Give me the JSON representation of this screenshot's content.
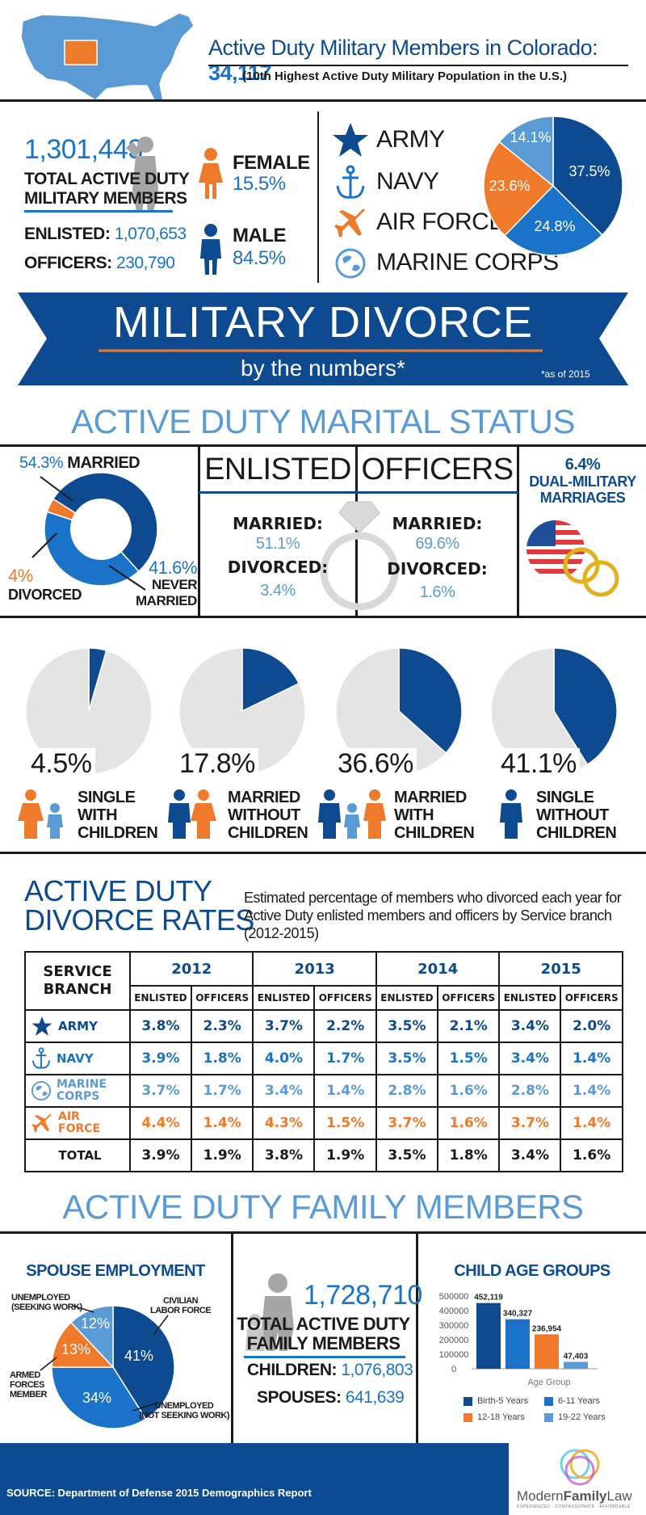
{
  "header": {
    "title": "Active Duty Military Members in Colorado:",
    "title_value": "34,117",
    "subtitle": "(10th Highest Active Duty Military Population in the U.S.)"
  },
  "totals": {
    "total_value": "1,301,443",
    "total_label_1": "TOTAL ACTIVE DUTY",
    "total_label_2": "MILITARY MEMBERS",
    "enlisted_label": "ENLISTED:",
    "enlisted_value": "1,070,653",
    "officers_label": "OFFICERS:",
    "officers_value": "230,790",
    "female_label": "FEMALE",
    "female_value": "15.5%",
    "male_label": "MALE",
    "male_value": "84.5%"
  },
  "branches": {
    "labels": [
      "ARMY",
      "NAVY",
      "AIR FORCE",
      "MARINE CORPS"
    ],
    "pie_labels": [
      "37.5%",
      "24.8%",
      "23.6%",
      "14.1%"
    ],
    "pie_values": [
      37.5,
      24.8,
      23.6,
      14.1
    ],
    "pie_colors": [
      "#0d4a8f",
      "#1a73c8",
      "#f07a2b",
      "#5b9bd5"
    ]
  },
  "banner": {
    "title": "MILITARY DIVORCE",
    "subtitle": "by the numbers*",
    "note": "*as of 2015"
  },
  "marital": {
    "heading": "ACTIVE DUTY MARITAL STATUS",
    "married_pct": "54.3%",
    "married_label": "MARRIED",
    "divorced_pct": "4%",
    "divorced_label": "DIVORCED",
    "never_pct": "41.6%",
    "never_label_1": "NEVER",
    "never_label_2": "MARRIED",
    "donut_values": [
      54.3,
      41.6,
      4.0
    ],
    "enlisted_heading": "ENLISTED",
    "officers_heading": "OFFICERS",
    "married_word": "MARRIED:",
    "divorced_word": "DIVORCED:",
    "enlisted_married": "51.1%",
    "enlisted_divorced": "3.4%",
    "officers_married": "69.6%",
    "officers_divorced": "1.6%",
    "dual_pct": "6.4%",
    "dual_label_1": "DUAL-MILITARY",
    "dual_label_2": "MARRIAGES"
  },
  "household": [
    {
      "pct": "4.5%",
      "value": 4.5,
      "line1": "SINGLE",
      "line2": "WITH",
      "line3": "CHILDREN"
    },
    {
      "pct": "17.8%",
      "value": 17.8,
      "line1": "MARRIED",
      "line2": "WITHOUT",
      "line3": "CHILDREN"
    },
    {
      "pct": "36.6%",
      "value": 36.6,
      "line1": "MARRIED",
      "line2": "WITH",
      "line3": "CHILDREN"
    },
    {
      "pct": "41.1%",
      "value": 41.1,
      "line1": "SINGLE",
      "line2": "WITHOUT",
      "line3": "CHILDREN"
    }
  ],
  "rates": {
    "heading_1": "ACTIVE DUTY",
    "heading_2": "DIVORCE RATES",
    "description": "Estimated percentage of members who divorced each year for Active Duty enlisted members and officers by Service branch (2012-2015)",
    "branch_header_1": "SERVICE",
    "branch_header_2": "BRANCH",
    "years": [
      "2012",
      "2013",
      "2014",
      "2015"
    ],
    "enlisted_col": "ENLISTED",
    "officers_col": "OFFICERS",
    "rows": [
      {
        "branch": "ARMY",
        "color": "#0d4a8f",
        "icon": "star-icon",
        "values": [
          "3.8%",
          "2.3%",
          "3.7%",
          "2.2%",
          "3.5%",
          "2.1%",
          "3.4%",
          "2.0%"
        ]
      },
      {
        "branch": "NAVY",
        "color": "#1a73c8",
        "icon": "anchor-icon",
        "values": [
          "3.9%",
          "1.8%",
          "4.0%",
          "1.7%",
          "3.5%",
          "1.5%",
          "3.4%",
          "1.4%"
        ]
      },
      {
        "branch": "MARINE CORPS",
        "color": "#5b9bd5",
        "icon": "globe-icon",
        "values": [
          "3.7%",
          "1.7%",
          "3.4%",
          "1.4%",
          "2.8%",
          "1.6%",
          "2.8%",
          "1.4%"
        ]
      },
      {
        "branch": "AIR FORCE",
        "color": "#f07a2b",
        "icon": "plane-icon",
        "values": [
          "4.4%",
          "1.4%",
          "4.3%",
          "1.5%",
          "3.7%",
          "1.6%",
          "3.7%",
          "1.4%"
        ]
      },
      {
        "branch": "TOTAL",
        "color": "#1a1a1a",
        "icon": "",
        "values": [
          "3.9%",
          "1.9%",
          "3.8%",
          "1.9%",
          "3.5%",
          "1.8%",
          "3.4%",
          "1.6%"
        ]
      }
    ]
  },
  "family": {
    "heading": "ACTIVE DUTY FAMILY MEMBERS",
    "spouse_title": "SPOUSE EMPLOYMENT",
    "spouse_values": [
      41,
      34,
      13,
      12
    ],
    "spouse_pcts": [
      "41%",
      "34%",
      "13%",
      "12%"
    ],
    "spouse_label_civilian_1": "CIVILIAN",
    "spouse_label_civilian_2": "LABOR FORCE",
    "spouse_label_notseeking_1": "UNEMPLOYED",
    "spouse_label_notseeking_2": "(NOT SEEKING WORK)",
    "spouse_label_armed_1": "ARMED",
    "spouse_label_armed_2": "FORCES",
    "spouse_label_armed_3": "MEMBER",
    "spouse_label_seeking_1": "UNEMPLOYED",
    "spouse_label_seeking_2": "(SEEKING WORK)",
    "total_value": "1,728,710",
    "total_label_1": "TOTAL ACTIVE DUTY",
    "total_label_2": "FAMILY MEMBERS",
    "children_label": "CHILDREN:",
    "children_value": "1,076,803",
    "spouses_label": "SPOUSES:",
    "spouses_value": "641,639",
    "child_title": "CHILD AGE GROUPS"
  },
  "chart_data": {
    "type": "bar",
    "categories": [
      "Birth-5 Years",
      "6-11 Years",
      "12-18 Years",
      "19-22 Years"
    ],
    "values": [
      452119,
      340327,
      236954,
      47403
    ],
    "value_labels": [
      "452,119",
      "340,327",
      "236,954",
      "47,403"
    ],
    "colors": [
      "#0d4a8f",
      "#1a73c8",
      "#f07a2b",
      "#5b9bd5"
    ],
    "xlabel": "Age Group",
    "ylim": [
      0,
      500000
    ],
    "yticks": [
      "500000",
      "400000",
      "300000",
      "200000",
      "100000",
      "0"
    ],
    "legend": "bottom"
  },
  "footer": {
    "source": "SOURCE: Department of Defense 2015 Demographics Report",
    "logo_text_1": "Modern",
    "logo_text_2": "Family",
    "logo_text_3": "Law",
    "logo_tagline": "EXPERIENCED · COMPASSIONATE · AFFORDABLE"
  }
}
